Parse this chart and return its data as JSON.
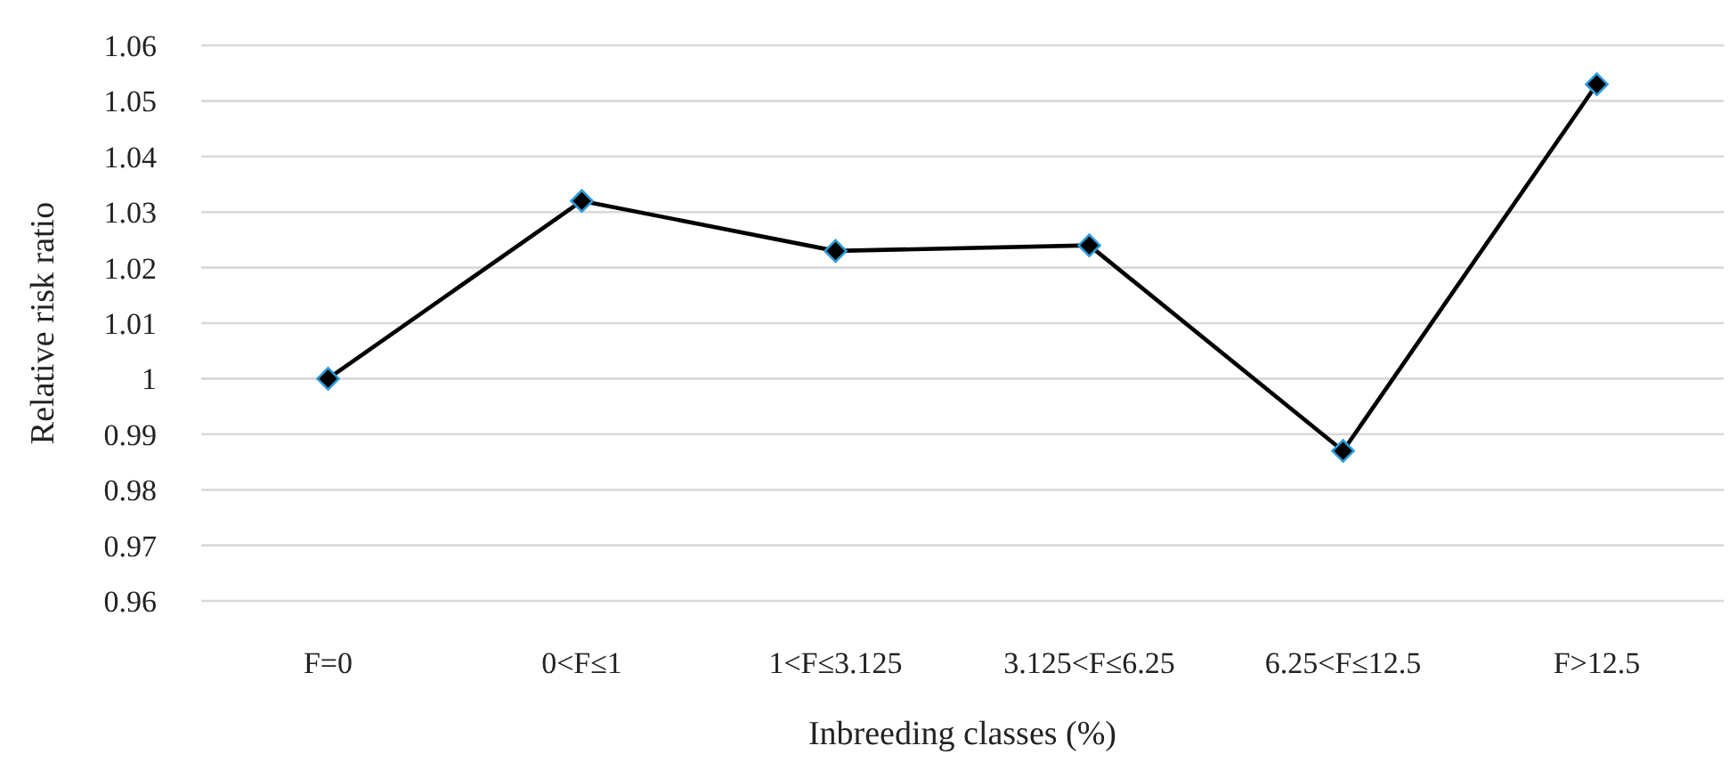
{
  "chart_data": {
    "type": "line",
    "xlabel": "Inbreeding classes (%)",
    "ylabel": "Relative risk ratio",
    "categories": [
      "F=0",
      "0<F≤1",
      "1<F≤3.125",
      "3.125<F≤6.25",
      "6.25<F≤12.5",
      "F>12.5"
    ],
    "series": [
      {
        "color": "#000000",
        "values": [
          1.0,
          1.032,
          1.023,
          1.024,
          0.987,
          1.053
        ]
      }
    ],
    "ylim": [
      0.96,
      1.06
    ],
    "yticks": [
      0.96,
      0.97,
      0.98,
      0.99,
      1,
      1.01,
      1.02,
      1.03,
      1.04,
      1.05,
      1.06
    ],
    "grid": "y",
    "marker": "diamond",
    "line_style": "solid"
  }
}
